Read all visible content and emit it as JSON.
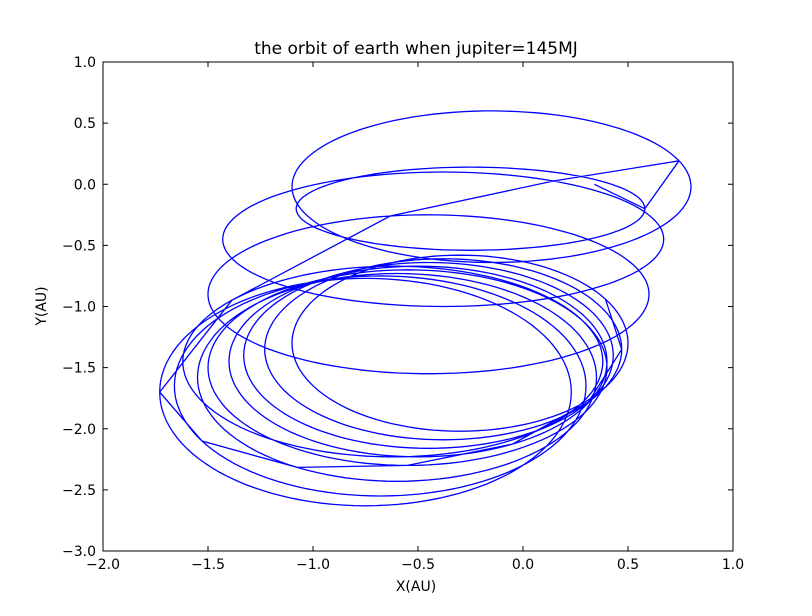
{
  "chart_data": {
    "type": "line",
    "title": "the orbit of earth when jupiter=145MJ",
    "xlabel": "X(AU)",
    "ylabel": "Y(AU)",
    "xlim": [
      -2.0,
      1.0
    ],
    "ylim": [
      -3.0,
      1.0
    ],
    "xticks": [
      "−2.0",
      "−1.5",
      "−1.0",
      "−0.5",
      "0.0",
      "0.5",
      "1.0"
    ],
    "xtick_values": [
      -2.0,
      -1.5,
      -1.0,
      -0.5,
      0.0,
      0.5,
      1.0
    ],
    "yticks": [
      "1.0",
      "0.5",
      "0.0",
      "−0.5",
      "−1.0",
      "−1.5",
      "−2.0",
      "−2.5",
      "−3.0"
    ],
    "ytick_values": [
      1.0,
      0.5,
      0.0,
      -0.5,
      -1.0,
      -1.5,
      -2.0,
      -2.5,
      -3.0
    ],
    "grid": false,
    "series": [
      {
        "color": "#0000ff",
        "orbit_loops": [
          {
            "center": [
              -0.25,
              -0.2
            ],
            "semi_axes": [
              0.83,
              0.34
            ],
            "phase_start_deg": 0
          },
          {
            "center": [
              -0.15,
              -0.02
            ],
            "semi_axes": [
              0.95,
              0.62
            ],
            "phase_start_deg": 20
          },
          {
            "center": [
              -0.38,
              -0.45
            ],
            "semi_axes": [
              1.05,
              0.55
            ],
            "phase_start_deg": 60
          },
          {
            "center": [
              -0.45,
              -0.9
            ],
            "semi_axes": [
              1.05,
              0.65
            ],
            "phase_start_deg": 100
          },
          {
            "center": [
              -0.62,
              -1.45
            ],
            "semi_axes": [
              1.0,
              0.78
            ],
            "phase_start_deg": 140
          },
          {
            "center": [
              -0.75,
              -1.7
            ],
            "semi_axes": [
              0.98,
              0.93
            ],
            "phase_start_deg": 180
          },
          {
            "center": [
              -0.68,
              -1.65
            ],
            "semi_axes": [
              0.98,
              0.9
            ],
            "phase_start_deg": 210
          },
          {
            "center": [
              -0.6,
              -1.58
            ],
            "semi_axes": [
              0.95,
              0.85
            ],
            "phase_start_deg": 240
          },
          {
            "center": [
              -0.55,
              -1.5
            ],
            "semi_axes": [
              0.95,
              0.8
            ],
            "phase_start_deg": 270
          },
          {
            "center": [
              -0.5,
              -1.45
            ],
            "semi_axes": [
              0.9,
              0.78
            ],
            "phase_start_deg": 300
          },
          {
            "center": [
              -0.45,
              -1.4
            ],
            "semi_axes": [
              0.88,
              0.76
            ],
            "phase_start_deg": 330
          },
          {
            "center": [
              -0.38,
              -1.35
            ],
            "semi_axes": [
              0.85,
              0.74
            ],
            "phase_start_deg": 0
          },
          {
            "center": [
              -0.3,
              -1.3
            ],
            "semi_axes": [
              0.8,
              0.72
            ],
            "phase_start_deg": 30
          }
        ],
        "start_point": [
          0.34,
          0.0
        ]
      }
    ]
  }
}
